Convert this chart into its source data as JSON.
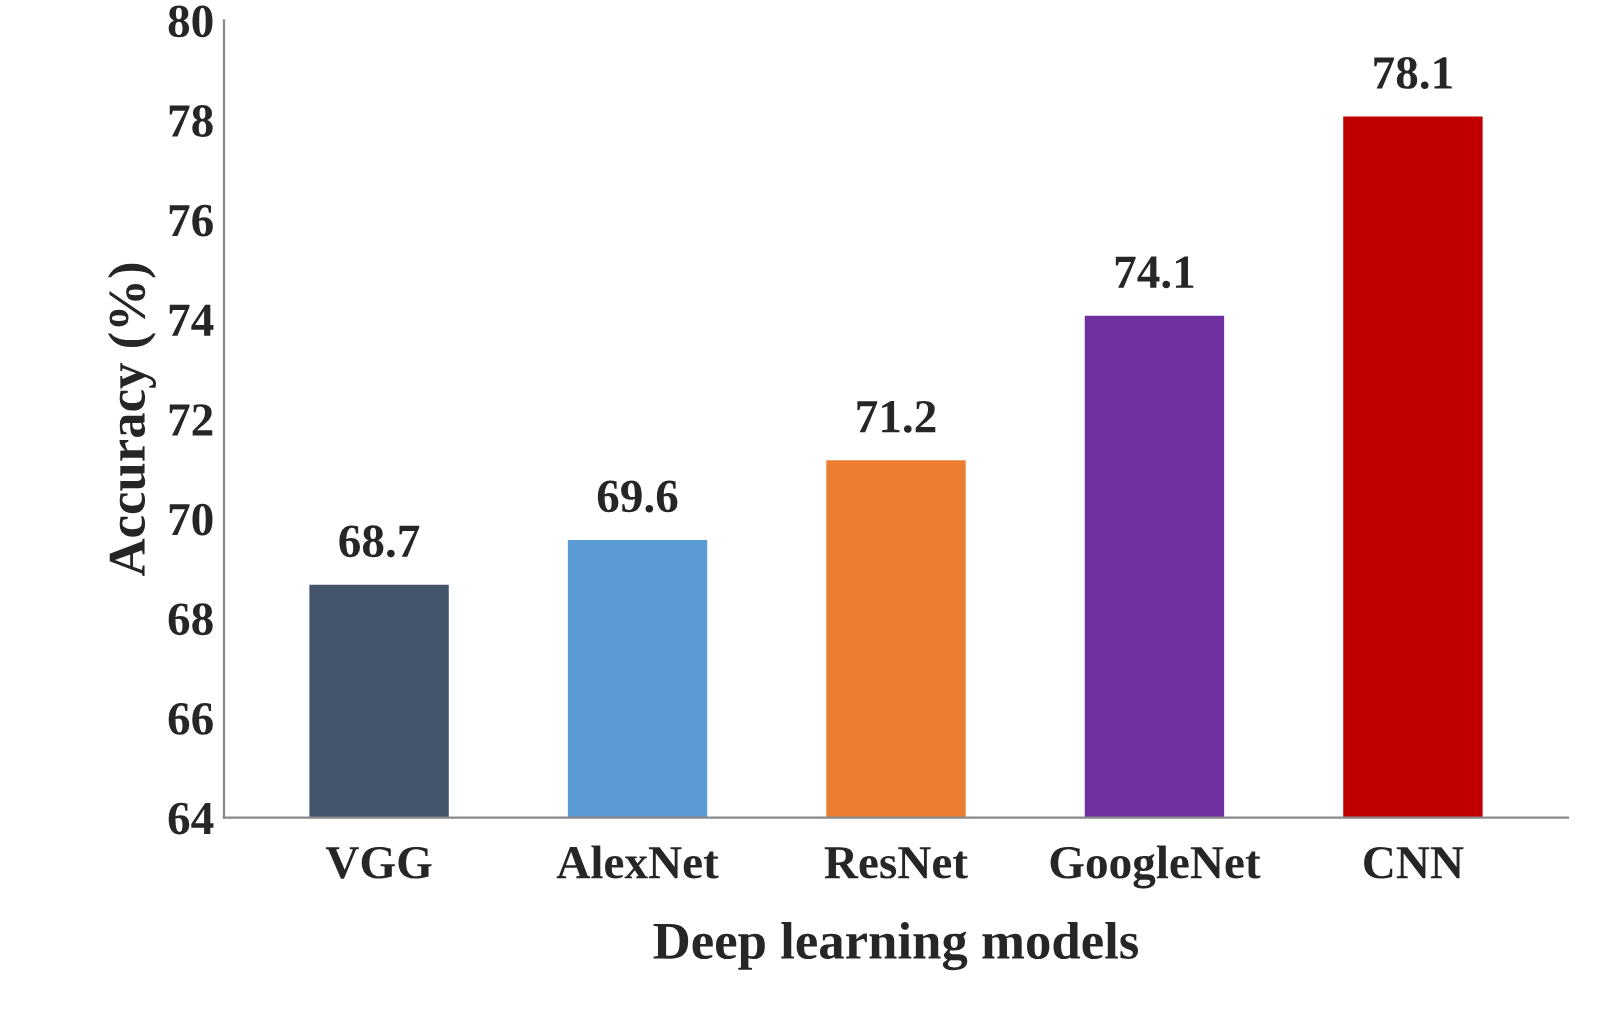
{
  "chart_data": {
    "type": "bar",
    "xlabel": "Deep learning models",
    "ylabel": "Accuracy (%)",
    "categories": [
      "VGG",
      "AlexNet",
      "ResNet",
      "GoogleNet",
      "CNN"
    ],
    "values": [
      68.7,
      69.6,
      71.2,
      74.1,
      78.1
    ],
    "colors": [
      "#44546a",
      "#5b9bd5",
      "#ed7d31",
      "#7030a0",
      "#c00000"
    ],
    "ylim": [
      64,
      80
    ],
    "yticks": [
      64,
      66,
      68,
      70,
      72,
      74,
      76,
      78,
      80
    ],
    "data_labels": true,
    "grid": false
  }
}
